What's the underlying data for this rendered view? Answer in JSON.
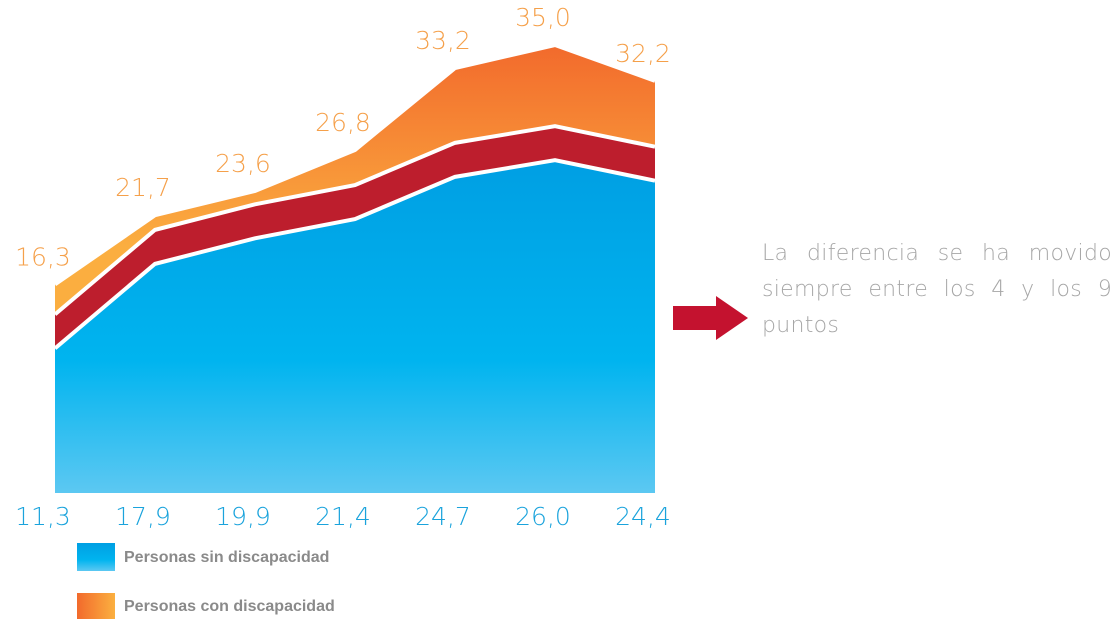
{
  "chart_data": {
    "type": "area",
    "series": [
      {
        "name": "Personas con discapacidad",
        "color": "#f47b2a",
        "values": [
          16.3,
          21.7,
          23.6,
          26.8,
          33.2,
          35.0,
          32.2
        ],
        "value_labels": [
          "16,3",
          "21,7",
          "23,6",
          "26,8",
          "33,2",
          "35,0",
          "32,2"
        ]
      },
      {
        "name": "Personas sin discapacidad",
        "color": "#00a6e6",
        "values": [
          11.3,
          17.9,
          19.9,
          21.4,
          24.7,
          26.0,
          24.4
        ],
        "value_labels": [
          "11,3",
          "17,9",
          "19,9",
          "21,4",
          "24,7",
          "26,0",
          "24,4"
        ]
      }
    ],
    "annotation": "La diferencia se ha movido siempre entre los 4 y los 9 puntos"
  }
}
